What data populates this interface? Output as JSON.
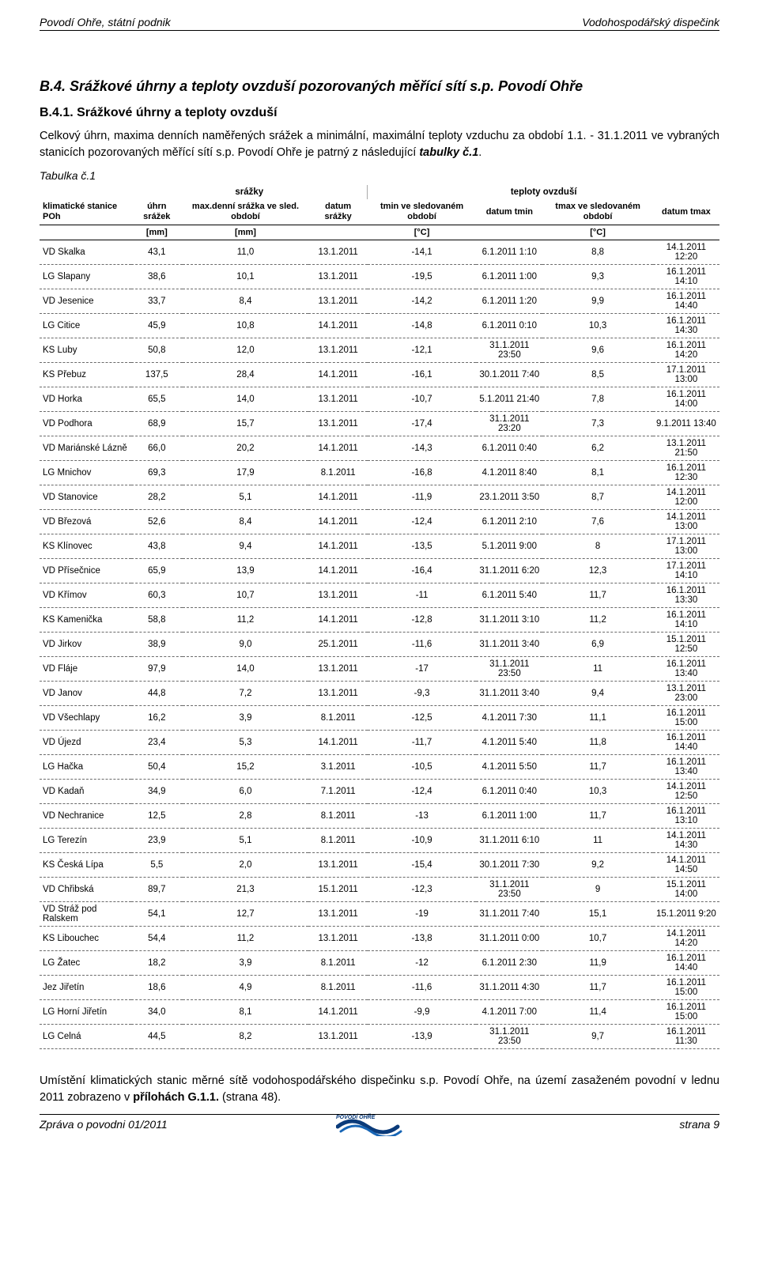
{
  "header": {
    "left": "Povodí Ohře, státní podnik",
    "right": "Vodohospodářský dispečink"
  },
  "section": {
    "title": "B.4. Srážkové úhrny a teploty ovzduší pozorovaných měřící sítí s.p. Povodí Ohře",
    "sub_title": "B.4.1. Srážkové úhrny a teploty ovzduší",
    "p1_a": "Celkový úhrn, maxima denních naměřených srážek a minimální, maximální teploty vzduchu za období 1.1. - 31.1.2011 ve vybraných stanicích pozorovaných měřící sítí s.p. Povodí Ohře je patrný z následující ",
    "p1_b": "tabulky č.1",
    "p1_c": ".",
    "table_caption": "Tabulka č.1",
    "p2_a": "Umístění klimatických stanic měrné sítě vodohospodářského dispečinku s.p. Povodí Ohře, na území zasaženém povodní v lednu 2011 zobrazeno v ",
    "p2_b": "přílohách G.1.1.",
    "p2_c": " (strana 48)."
  },
  "table": {
    "group1": "srážky",
    "group2": "teploty ovzduší",
    "col0": "klimatické stanice POh",
    "col1": "úhrn srážek",
    "col2": "max.denní srážka ve sled. období",
    "col3": "datum srážky",
    "col4": "tmin ve sledovaném období",
    "col5": "datum tmin",
    "col6": "tmax ve sledovaném období",
    "col7": "datum tmax",
    "u1": "[mm]",
    "u2": "[mm]",
    "u4": "[°C]",
    "u6": "[°C]",
    "rows": [
      [
        "VD Skalka",
        "43,1",
        "11,0",
        "13.1.2011",
        "-14,1",
        "6.1.2011 1:10",
        "8,8",
        "14.1.2011 12:20"
      ],
      [
        "LG Slapany",
        "38,6",
        "10,1",
        "13.1.2011",
        "-19,5",
        "6.1.2011 1:00",
        "9,3",
        "16.1.2011 14:10"
      ],
      [
        "VD Jesenice",
        "33,7",
        "8,4",
        "13.1.2011",
        "-14,2",
        "6.1.2011 1:20",
        "9,9",
        "16.1.2011 14:40"
      ],
      [
        "LG Citice",
        "45,9",
        "10,8",
        "14.1.2011",
        "-14,8",
        "6.1.2011 0:10",
        "10,3",
        "16.1.2011 14:30"
      ],
      [
        "KS Luby",
        "50,8",
        "12,0",
        "13.1.2011",
        "-12,1",
        "31.1.2011 23:50",
        "9,6",
        "16.1.2011 14:20"
      ],
      [
        "KS Přebuz",
        "137,5",
        "28,4",
        "14.1.2011",
        "-16,1",
        "30.1.2011 7:40",
        "8,5",
        "17.1.2011 13:00"
      ],
      [
        "VD Horka",
        "65,5",
        "14,0",
        "13.1.2011",
        "-10,7",
        "5.1.2011 21:40",
        "7,8",
        "16.1.2011 14:00"
      ],
      [
        "VD Podhora",
        "68,9",
        "15,7",
        "13.1.2011",
        "-17,4",
        "31.1.2011 23:20",
        "7,3",
        "9.1.2011 13:40"
      ],
      [
        "VD Mariánské Lázně",
        "66,0",
        "20,2",
        "14.1.2011",
        "-14,3",
        "6.1.2011 0:40",
        "6,2",
        "13.1.2011 21:50"
      ],
      [
        "LG Mnichov",
        "69,3",
        "17,9",
        "8.1.2011",
        "-16,8",
        "4.1.2011 8:40",
        "8,1",
        "16.1.2011 12:30"
      ],
      [
        "VD Stanovice",
        "28,2",
        "5,1",
        "14.1.2011",
        "-11,9",
        "23.1.2011 3:50",
        "8,7",
        "14.1.2011 12:00"
      ],
      [
        "VD Březová",
        "52,6",
        "8,4",
        "14.1.2011",
        "-12,4",
        "6.1.2011 2:10",
        "7,6",
        "14.1.2011 13:00"
      ],
      [
        "KS Klínovec",
        "43,8",
        "9,4",
        "14.1.2011",
        "-13,5",
        "5.1.2011 9:00",
        "8",
        "17.1.2011 13:00"
      ],
      [
        "VD Přísečnice",
        "65,9",
        "13,9",
        "14.1.2011",
        "-16,4",
        "31.1.2011 6:20",
        "12,3",
        "17.1.2011 14:10"
      ],
      [
        "VD Křímov",
        "60,3",
        "10,7",
        "13.1.2011",
        "-11",
        "6.1.2011 5:40",
        "11,7",
        "16.1.2011 13:30"
      ],
      [
        "KS Kamenička",
        "58,8",
        "11,2",
        "14.1.2011",
        "-12,8",
        "31.1.2011 3:10",
        "11,2",
        "16.1.2011 14:10"
      ],
      [
        "VD Jirkov",
        "38,9",
        "9,0",
        "25.1.2011",
        "-11,6",
        "31.1.2011 3:40",
        "6,9",
        "15.1.2011 12:50"
      ],
      [
        "VD Fláje",
        "97,9",
        "14,0",
        "13.1.2011",
        "-17",
        "31.1.2011 23:50",
        "11",
        "16.1.2011 13:40"
      ],
      [
        "VD Janov",
        "44,8",
        "7,2",
        "13.1.2011",
        "-9,3",
        "31.1.2011 3:40",
        "9,4",
        "13.1.2011 23:00"
      ],
      [
        "VD Všechlapy",
        "16,2",
        "3,9",
        "8.1.2011",
        "-12,5",
        "4.1.2011 7:30",
        "11,1",
        "16.1.2011 15:00"
      ],
      [
        "VD Újezd",
        "23,4",
        "5,3",
        "14.1.2011",
        "-11,7",
        "4.1.2011 5:40",
        "11,8",
        "16.1.2011 14:40"
      ],
      [
        "LG Hačka",
        "50,4",
        "15,2",
        "3.1.2011",
        "-10,5",
        "4.1.2011 5:50",
        "11,7",
        "16.1.2011 13:40"
      ],
      [
        "VD Kadaň",
        "34,9",
        "6,0",
        "7.1.2011",
        "-12,4",
        "6.1.2011 0:40",
        "10,3",
        "14.1.2011 12:50"
      ],
      [
        "VD Nechranice",
        "12,5",
        "2,8",
        "8.1.2011",
        "-13",
        "6.1.2011 1:00",
        "11,7",
        "16.1.2011 13:10"
      ],
      [
        "LG Terezín",
        "23,9",
        "5,1",
        "8.1.2011",
        "-10,9",
        "31.1.2011 6:10",
        "11",
        "14.1.2011 14:30"
      ],
      [
        "KS Česká Lípa",
        "5,5",
        "2,0",
        "13.1.2011",
        "-15,4",
        "30.1.2011 7:30",
        "9,2",
        "14.1.2011 14:50"
      ],
      [
        "VD Chřibská",
        "89,7",
        "21,3",
        "15.1.2011",
        "-12,3",
        "31.1.2011 23:50",
        "9",
        "15.1.2011 14:00"
      ],
      [
        "VD Stráž pod Ralskem",
        "54,1",
        "12,7",
        "13.1.2011",
        "-19",
        "31.1.2011 7:40",
        "15,1",
        "15.1.2011 9:20"
      ],
      [
        "KS Libouchec",
        "54,4",
        "11,2",
        "13.1.2011",
        "-13,8",
        "31.1.2011 0:00",
        "10,7",
        "14.1.2011 14:20"
      ],
      [
        "LG Žatec",
        "18,2",
        "3,9",
        "8.1.2011",
        "-12",
        "6.1.2011 2:30",
        "11,9",
        "16.1.2011 14:40"
      ],
      [
        "Jez Jiřetín",
        "18,6",
        "4,9",
        "8.1.2011",
        "-11,6",
        "31.1.2011 4:30",
        "11,7",
        "16.1.2011 15:00"
      ],
      [
        "LG Horní Jiřetín",
        "34,0",
        "8,1",
        "14.1.2011",
        "-9,9",
        "4.1.2011 7:00",
        "11,4",
        "16.1.2011 15:00"
      ],
      [
        "LG Celná",
        "44,5",
        "8,2",
        "13.1.2011",
        "-13,9",
        "31.1.2011 23:50",
        "9,7",
        "16.1.2011 11:30"
      ]
    ]
  },
  "footer": {
    "left": "Zpráva o povodni 01/2011",
    "right": "strana 9",
    "logo_text": "POVODÍ OHŘE"
  },
  "colors": {
    "text": "#000000",
    "dash": "#6a6a6a",
    "logo_blue": "#0b3b7a",
    "logo_blue2": "#1765b5"
  }
}
